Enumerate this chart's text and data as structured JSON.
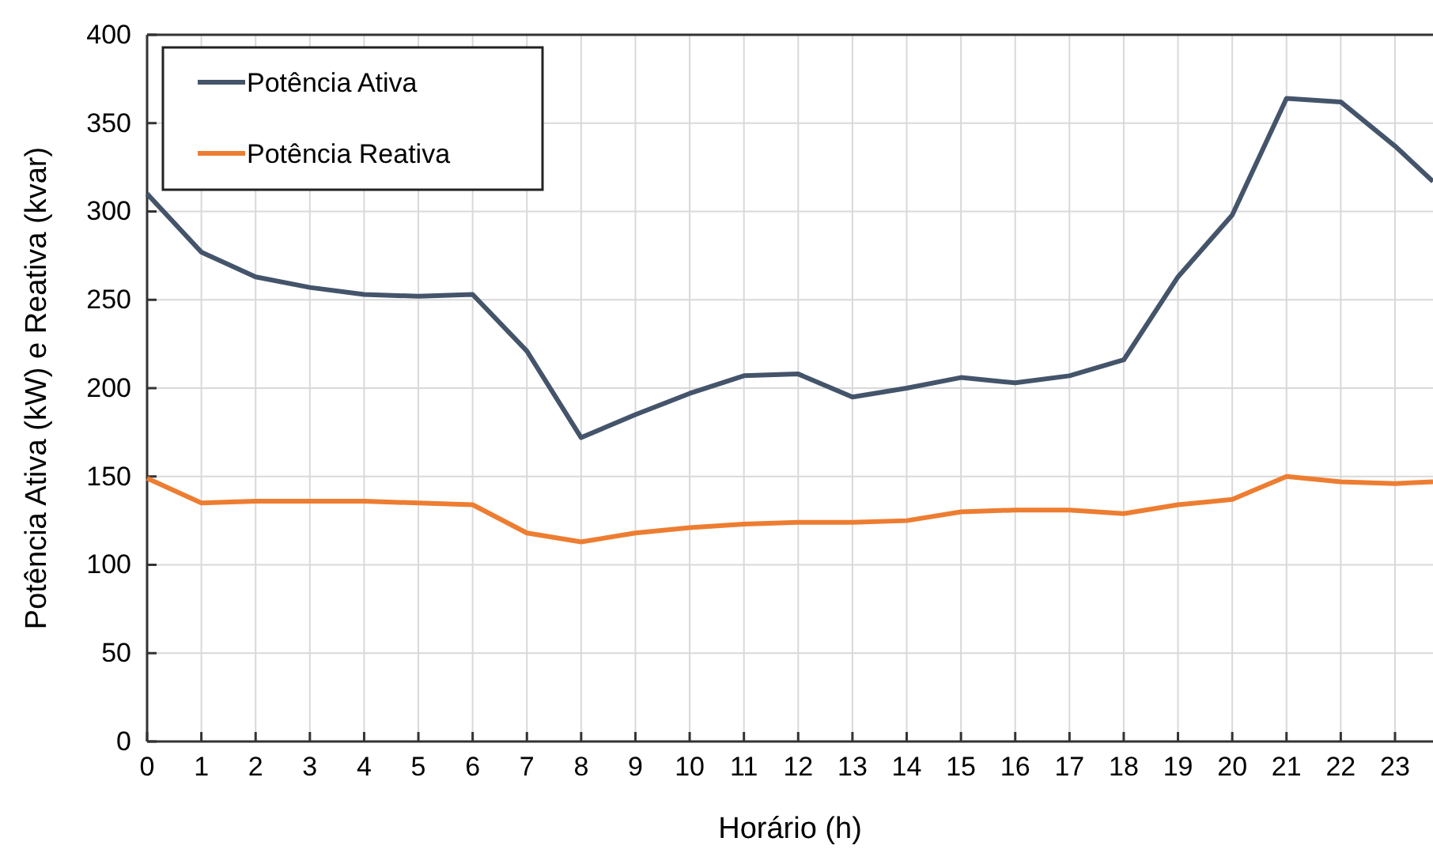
{
  "chart_data": {
    "type": "line",
    "xlabel": "Horário (h)",
    "ylabel": "Potência Ativa (kW) e Reativa (kvar)",
    "x": [
      0,
      1,
      2,
      3,
      4,
      5,
      6,
      7,
      8,
      9,
      10,
      11,
      12,
      13,
      14,
      15,
      16,
      17,
      18,
      19,
      20,
      21,
      22,
      23,
      23.7
    ],
    "series": [
      {
        "name": "Potência Ativa",
        "color": "#44546a",
        "values": [
          310,
          277,
          263,
          257,
          253,
          252,
          253,
          221,
          172,
          185,
          197,
          207,
          208,
          195,
          200,
          206,
          203,
          207,
          216,
          263,
          298,
          364,
          362,
          337,
          317
        ]
      },
      {
        "name": "Potência Reativa",
        "color": "#ed7d31",
        "values": [
          149,
          135,
          136,
          136,
          136,
          135,
          134,
          118,
          113,
          118,
          121,
          123,
          124,
          124,
          125,
          130,
          131,
          131,
          129,
          134,
          137,
          150,
          147,
          146,
          147
        ]
      }
    ],
    "xlim": [
      0,
      23.7
    ],
    "xticks": [
      0,
      1,
      2,
      3,
      4,
      5,
      6,
      7,
      8,
      9,
      10,
      11,
      12,
      13,
      14,
      15,
      16,
      17,
      18,
      19,
      20,
      21,
      22,
      23
    ],
    "ylim": [
      0,
      400
    ],
    "yticks": [
      0,
      50,
      100,
      150,
      200,
      250,
      300,
      350,
      400
    ],
    "grid": true,
    "legend": "top left",
    "marker": "none",
    "line_style": "solid"
  }
}
